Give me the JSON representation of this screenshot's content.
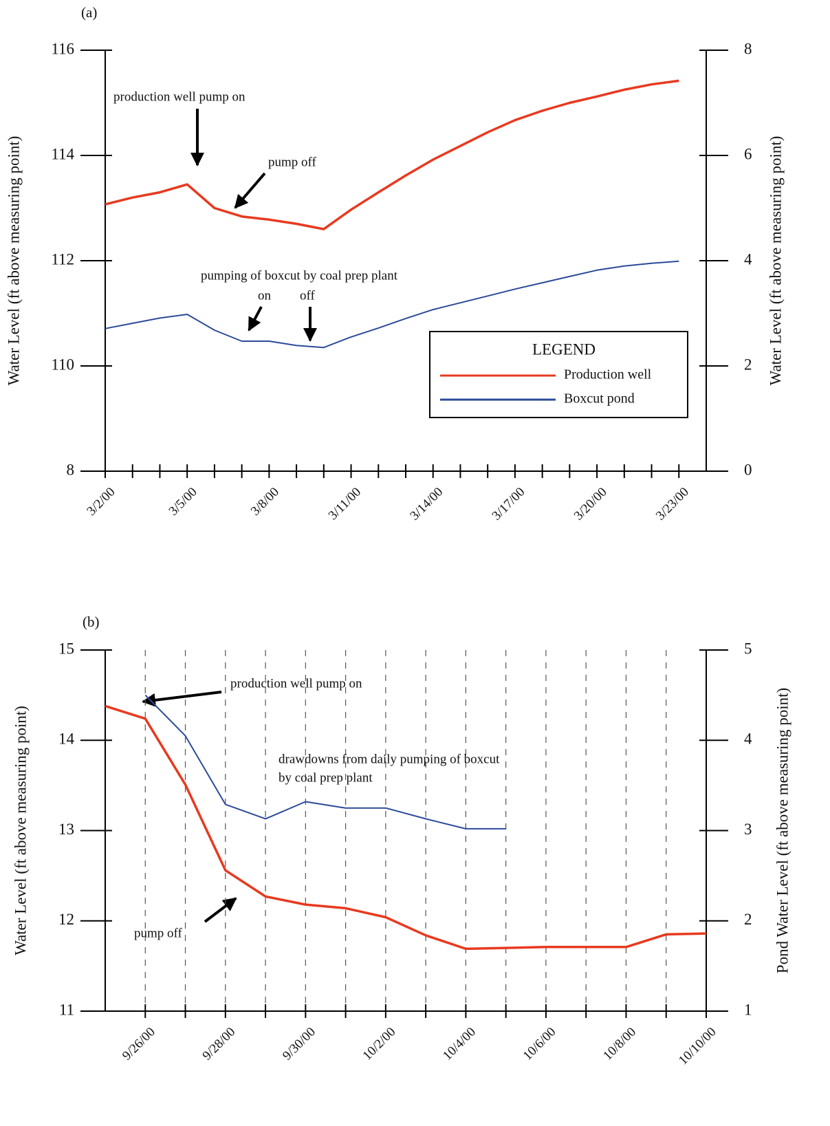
{
  "chart_data": [
    {
      "type": "line",
      "title": "(a)",
      "ylabel": "Water Level (ft above measuring point)",
      "y2label": "Water Level (ft above measuring point)",
      "ylim": [
        108,
        116
      ],
      "yticks": [
        {
          "value": 108,
          "label": "8"
        },
        110,
        112,
        114,
        116
      ],
      "y2lim": [
        0,
        8
      ],
      "y2ticks": [
        0,
        2,
        4,
        6,
        8
      ],
      "xlim": [
        "3/2/00",
        "3/24/00"
      ],
      "xticks": [
        "3/2/00",
        {
          "value": "3/3/00",
          "label": null
        },
        {
          "value": "3/4/00",
          "label": null
        },
        "3/5/00",
        {
          "value": "3/6/00",
          "label": null
        },
        {
          "value": "3/7/00",
          "label": null
        },
        "3/8/00",
        {
          "value": "3/9/00",
          "label": null
        },
        {
          "value": "3/10/00",
          "label": null
        },
        "3/11/00",
        {
          "value": "3/12/00",
          "label": null
        },
        {
          "value": "3/13/00",
          "label": null
        },
        "3/14/00",
        {
          "value": "3/15/00",
          "label": null
        },
        {
          "value": "3/16/00",
          "label": null
        },
        "3/17/00",
        {
          "value": "3/18/00",
          "label": null
        },
        {
          "value": "3/19/00",
          "label": null
        },
        "3/20/00",
        {
          "value": "3/21/00",
          "label": null
        },
        {
          "value": "3/22/00",
          "label": null
        },
        "3/23/00"
      ],
      "grid": false,
      "x": [
        "3/2/00",
        "3/3/00",
        "3/4/00",
        "3/5/00",
        "3/6/00",
        "3/7/00",
        "3/8/00",
        "3/9/00",
        "3/10/00",
        "3/11/00",
        "3/12/00",
        "3/13/00",
        "3/14/00",
        "3/15/00",
        "3/16/00",
        "3/17/00",
        "3/18/00",
        "3/19/00",
        "3/20/00",
        "3/21/00",
        "3/22/00",
        "3/23/00"
      ],
      "series": [
        {
          "name": "Production well",
          "color": "#e8391f",
          "axis": "y",
          "values": [
            113.07,
            113.2,
            113.3,
            113.45,
            113.0,
            112.84,
            112.78,
            112.7,
            112.6,
            112.97,
            113.3,
            113.62,
            113.92,
            114.18,
            114.44,
            114.67,
            114.85,
            115.0,
            115.12,
            115.25,
            115.35,
            115.42
          ]
        },
        {
          "name": "Boxcut pond",
          "color": "#2b4a9a",
          "axis": "y2",
          "values": [
            2.71,
            2.81,
            2.91,
            2.98,
            2.68,
            2.47,
            2.47,
            2.39,
            2.35,
            2.55,
            2.72,
            2.9,
            3.07,
            3.2,
            3.33,
            3.46,
            3.58,
            3.7,
            3.82,
            3.9,
            3.95,
            3.99
          ]
        }
      ],
      "legend": {
        "title": "LEGEND",
        "position": "lower right"
      },
      "annotations": [
        "production well pump on",
        "pump off",
        "pumping of boxcut by coal prep plant",
        "on",
        "off"
      ]
    },
    {
      "type": "line",
      "title": "(b)",
      "ylabel": "Water Level (ft above measuring point)",
      "y2label": "Pond Water Level (ft above measuring point)",
      "ylim": [
        11,
        15
      ],
      "yticks": [
        11,
        12,
        13,
        14,
        15
      ],
      "y2lim": [
        1,
        5
      ],
      "y2ticks": [
        1,
        2,
        3,
        4,
        5
      ],
      "xlim": [
        "9/25/00",
        "10/10/00"
      ],
      "xticks": [
        "9/26/00",
        {
          "value": "9/27/00",
          "label": null
        },
        "9/28/00",
        {
          "value": "9/29/00",
          "label": null
        },
        "9/30/00",
        {
          "value": "10/1/00",
          "label": null
        },
        "10/2/00",
        {
          "value": "10/3/00",
          "label": null
        },
        "10/4/00",
        {
          "value": "10/5/00",
          "label": null
        },
        "10/6/00",
        {
          "value": "10/7/00",
          "label": null
        },
        "10/8/00",
        {
          "value": "10/9/00",
          "label": null
        },
        "10/10/00"
      ],
      "grid": true,
      "x": [
        "9/25/00",
        "9/26/00",
        "9/27/00",
        "9/28/00",
        "9/29/00",
        "9/30/00",
        "10/1/00",
        "10/2/00",
        "10/3/00",
        "10/4/00",
        "10/5/00",
        "10/6/00",
        "10/7/00",
        "10/8/00",
        "10/9/00",
        "10/10/00"
      ],
      "series": [
        {
          "color": "#e8391f",
          "axis": "y",
          "values": [
            14.38,
            14.24,
            13.51,
            12.56,
            12.27,
            12.18,
            12.14,
            12.04,
            11.84,
            11.69,
            11.7,
            11.71,
            11.71,
            11.71,
            11.85,
            11.86
          ]
        },
        {
          "color": "#2b4a9a",
          "axis": "y2",
          "values": [
            null,
            4.5,
            4.05,
            3.29,
            3.13,
            3.32,
            3.25,
            3.25,
            3.13,
            3.02,
            3.02,
            null,
            null,
            null,
            null,
            null
          ]
        }
      ],
      "annotations": [
        "production well pump on",
        "drawdowns from daily pumping of boxcut",
        "by coal prep plant",
        "pump off"
      ]
    }
  ]
}
